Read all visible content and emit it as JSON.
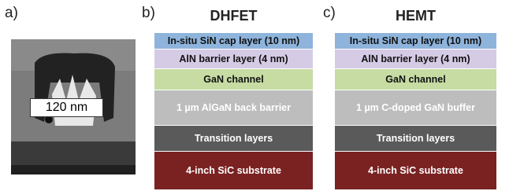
{
  "panels": [
    {
      "label": "a)",
      "scale_label": "120 nm"
    },
    {
      "label": "b)",
      "title": "DHFET",
      "layers": [
        "In-situ SiN cap layer (10 nm)",
        "AlN barrier layer (4 nm)",
        "GaN channel",
        "1 µm AlGaN back barrier",
        "Transition layers",
        "4-inch SiC substrate"
      ]
    },
    {
      "label": "c)",
      "title": "HEMT",
      "layers": [
        "In-situ SiN cap layer (10 nm)",
        "AlN barrier layer (4 nm)",
        "GaN channel",
        "1 µm C-doped GaN buffer",
        "Transition layers",
        "4-inch SiC substrate"
      ]
    }
  ]
}
